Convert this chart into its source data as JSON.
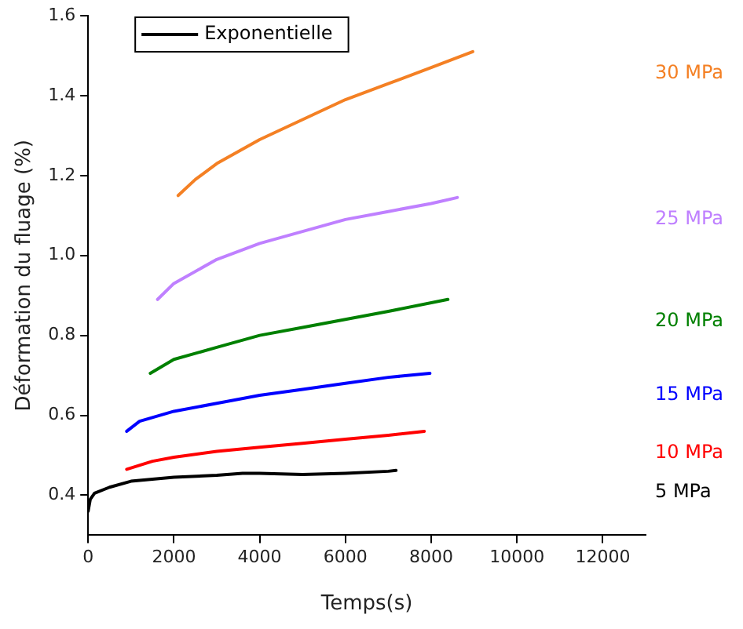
{
  "chart_data": {
    "type": "line",
    "xlabel": "Temps(s)",
    "ylabel": "Déformation du fluage (%)",
    "xlim": [
      0,
      13000
    ],
    "xticks": [
      0,
      2000,
      4000,
      6000,
      8000,
      10000,
      12000
    ],
    "ylim": [
      0.3,
      1.6
    ],
    "yticks": [
      {
        "value": 0.4,
        "label": "0.4"
      },
      {
        "value": 0.6,
        "label": "0.6"
      },
      {
        "value": 0.8,
        "label": "0.8"
      },
      {
        "value": 1.0,
        "label": "1.0"
      },
      {
        "value": 1.2,
        "label": "1.2"
      },
      {
        "value": 1.4,
        "label": "1.4"
      },
      {
        "value": 1.6,
        "label": "1.6"
      }
    ],
    "grid": false,
    "legend": "top left",
    "marker": "none",
    "line_style": "solid",
    "series": [
      {
        "name": "Exponentielle",
        "color": "#000000"
      },
      {
        "name": "5 MPa",
        "color": "#000000",
        "x": [
          0,
          50,
          150,
          500,
          1000,
          2000,
          3000,
          3600,
          4000,
          5000,
          6000,
          7000,
          7180
        ],
        "values": [
          0.36,
          0.39,
          0.405,
          0.42,
          0.435,
          0.445,
          0.45,
          0.455,
          0.455,
          0.452,
          0.455,
          0.46,
          0.462
        ]
      },
      {
        "name": "10 MPa",
        "color": "#ff0000",
        "x": [
          900,
          1500,
          2000,
          3000,
          4000,
          5000,
          6000,
          7000,
          7840
        ],
        "values": [
          0.465,
          0.485,
          0.495,
          0.51,
          0.52,
          0.53,
          0.54,
          0.55,
          0.56
        ]
      },
      {
        "name": "15 MPa",
        "color": "#0000ff",
        "x": [
          900,
          1200,
          2000,
          3000,
          4000,
          5000,
          6000,
          7000,
          7970
        ],
        "values": [
          0.56,
          0.585,
          0.61,
          0.63,
          0.65,
          0.665,
          0.68,
          0.695,
          0.705
        ]
      },
      {
        "name": "20 MPa",
        "color": "#008000",
        "x": [
          1450,
          2000,
          3000,
          4000,
          5000,
          6000,
          7000,
          8390
        ],
        "values": [
          0.705,
          0.74,
          0.77,
          0.8,
          0.82,
          0.84,
          0.86,
          0.89
        ]
      },
      {
        "name": "25 MPa",
        "color": "#bf80ff",
        "x": [
          1620,
          2000,
          3000,
          4000,
          5000,
          6000,
          7000,
          8000,
          8610
        ],
        "values": [
          0.89,
          0.93,
          0.99,
          1.03,
          1.06,
          1.09,
          1.11,
          1.13,
          1.145
        ]
      },
      {
        "name": "30 MPa",
        "color": "#f48024",
        "x": [
          2100,
          2500,
          3000,
          4000,
          5000,
          6000,
          7000,
          8000,
          8970
        ],
        "values": [
          1.15,
          1.19,
          1.23,
          1.29,
          1.34,
          1.39,
          1.43,
          1.47,
          1.51
        ]
      }
    ]
  }
}
